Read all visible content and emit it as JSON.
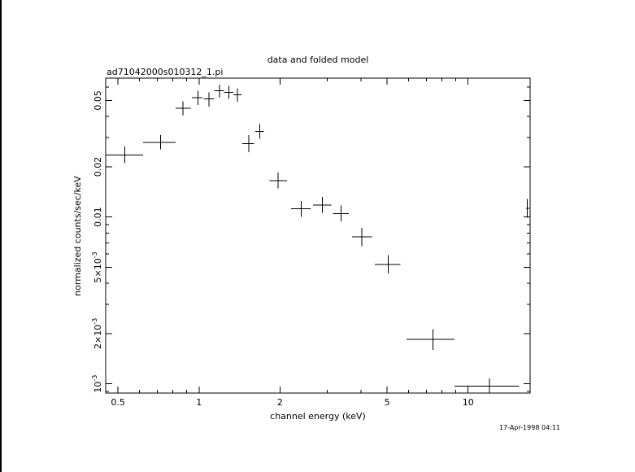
{
  "chart_data": {
    "type": "scatter",
    "title": "data and folded model",
    "subtitle": "ad71042000s010312_1.pi",
    "xlabel": "channel energy (keV)",
    "ylabel": "normalized counts/sec/keV",
    "x_scale": "log",
    "y_scale": "log",
    "xlim": [
      0.45,
      17
    ],
    "ylim": [
      0.00088,
      0.068
    ],
    "x_tick_labels": [
      "0.5",
      "1",
      "2",
      "5",
      "10"
    ],
    "x_tick_values": [
      0.5,
      1,
      2,
      5,
      10
    ],
    "y_tick_labels": [
      {
        "value": 0.05,
        "text": "0.05"
      },
      {
        "value": 0.02,
        "text": "0.02"
      },
      {
        "value": 0.01,
        "text": "0.01"
      },
      {
        "value": 0.005,
        "mantissa": "5",
        "exponent": "-3"
      },
      {
        "value": 0.002,
        "mantissa": "2",
        "exponent": "-3"
      },
      {
        "value": 0.001,
        "mantissa": "10",
        "exponent": "-3"
      }
    ],
    "grid": false,
    "legend": "none",
    "series": [
      {
        "points": [
          {
            "x": 0.53,
            "x_lo": 0.45,
            "x_hi": 0.62,
            "y": 0.0235,
            "y_lo": 0.021,
            "y_hi": 0.0265
          },
          {
            "x": 0.72,
            "x_lo": 0.62,
            "x_hi": 0.82,
            "y": 0.028,
            "y_lo": 0.0255,
            "y_hi": 0.031
          },
          {
            "x": 0.87,
            "x_lo": 0.82,
            "x_hi": 0.93,
            "y": 0.045,
            "y_lo": 0.0405,
            "y_hi": 0.0495
          },
          {
            "x": 0.99,
            "x_lo": 0.94,
            "x_hi": 1.03,
            "y": 0.052,
            "y_lo": 0.047,
            "y_hi": 0.057
          },
          {
            "x": 1.09,
            "x_lo": 1.04,
            "x_hi": 1.14,
            "y": 0.051,
            "y_lo": 0.046,
            "y_hi": 0.056
          },
          {
            "x": 1.19,
            "x_lo": 1.14,
            "x_hi": 1.24,
            "y": 0.057,
            "y_lo": 0.052,
            "y_hi": 0.062
          },
          {
            "x": 1.29,
            "x_lo": 1.24,
            "x_hi": 1.34,
            "y": 0.056,
            "y_lo": 0.051,
            "y_hi": 0.061
          },
          {
            "x": 1.39,
            "x_lo": 1.34,
            "x_hi": 1.44,
            "y": 0.054,
            "y_lo": 0.049,
            "y_hi": 0.059
          },
          {
            "x": 1.53,
            "x_lo": 1.45,
            "x_hi": 1.6,
            "y": 0.0275,
            "y_lo": 0.0245,
            "y_hi": 0.031
          },
          {
            "x": 1.68,
            "x_lo": 1.62,
            "x_hi": 1.74,
            "y": 0.0325,
            "y_lo": 0.0295,
            "y_hi": 0.036
          },
          {
            "x": 1.97,
            "x_lo": 1.83,
            "x_hi": 2.12,
            "y": 0.0165,
            "y_lo": 0.0148,
            "y_hi": 0.0185
          },
          {
            "x": 2.4,
            "x_lo": 2.2,
            "x_hi": 2.6,
            "y": 0.0112,
            "y_lo": 0.01,
            "y_hi": 0.0125
          },
          {
            "x": 2.87,
            "x_lo": 2.65,
            "x_hi": 3.1,
            "y": 0.0118,
            "y_lo": 0.0106,
            "y_hi": 0.0132
          },
          {
            "x": 3.37,
            "x_lo": 3.15,
            "x_hi": 3.6,
            "y": 0.0105,
            "y_lo": 0.0094,
            "y_hi": 0.0117
          },
          {
            "x": 4.03,
            "x_lo": 3.7,
            "x_hi": 4.4,
            "y": 0.0076,
            "y_lo": 0.0067,
            "y_hi": 0.0086
          },
          {
            "x": 5.05,
            "x_lo": 4.5,
            "x_hi": 5.6,
            "y": 0.0052,
            "y_lo": 0.0046,
            "y_hi": 0.0059
          },
          {
            "x": 7.4,
            "x_lo": 5.9,
            "x_hi": 8.9,
            "y": 0.00185,
            "y_lo": 0.0016,
            "y_hi": 0.00212
          },
          {
            "x": 12.0,
            "x_lo": 8.9,
            "x_hi": 15.5,
            "y": 0.00097,
            "y_lo": 0.00088,
            "y_hi": 0.00108
          },
          {
            "x": 16.6,
            "x_lo": 16.4,
            "x_hi": 16.9,
            "y": 0.0113,
            "y_lo": 0.0099,
            "y_hi": 0.0128
          }
        ]
      }
    ]
  },
  "timestamp": "17-Apr-1998 04:11"
}
